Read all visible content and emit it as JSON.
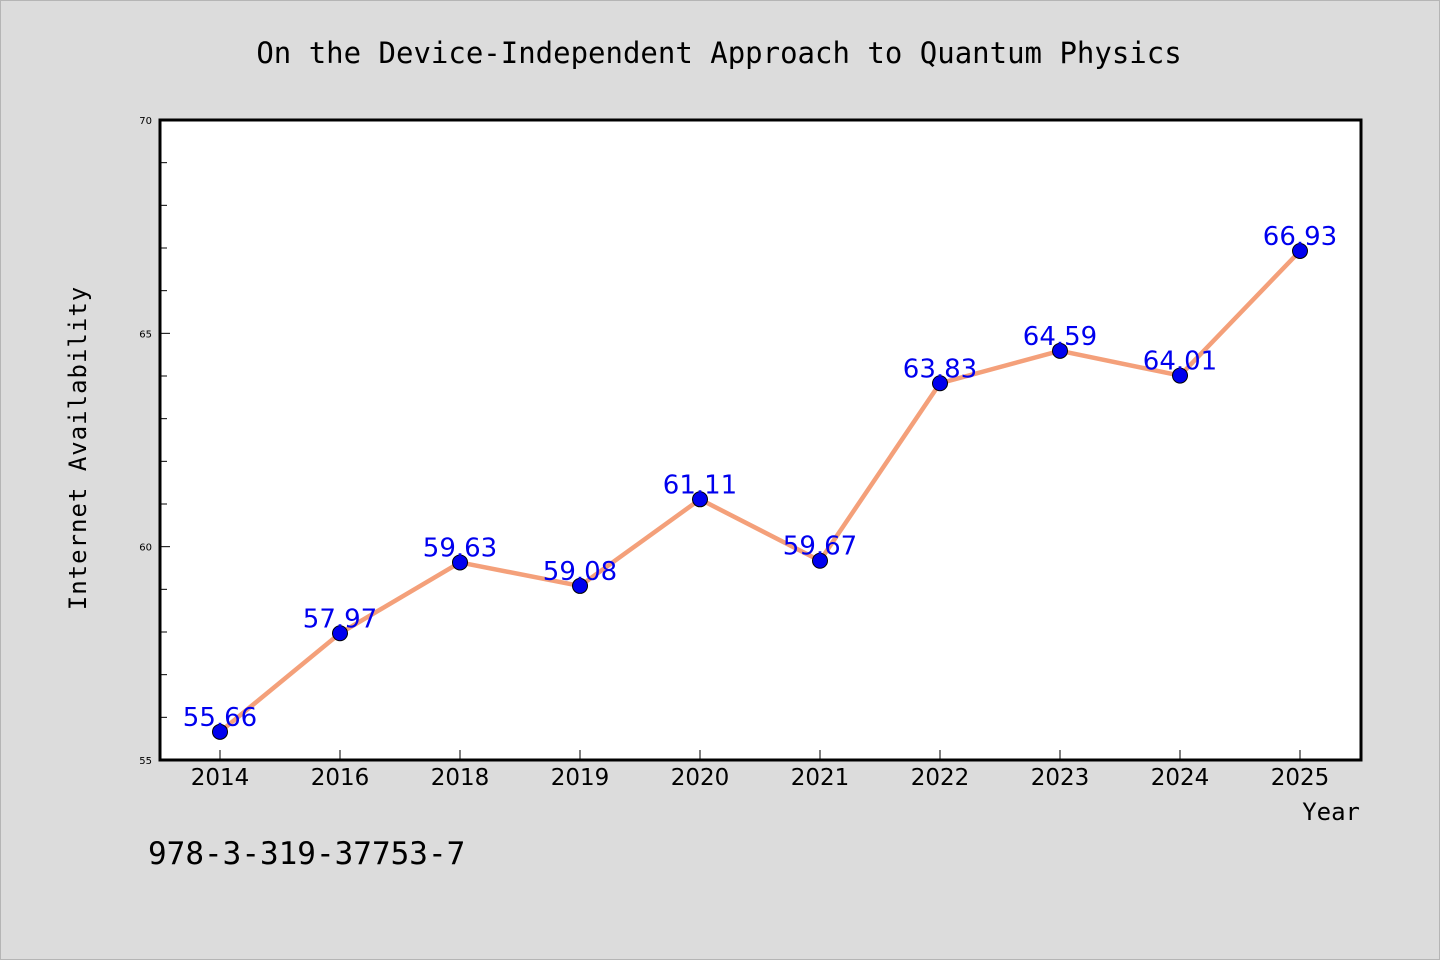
{
  "chart_data": {
    "type": "line",
    "title": "On the Device-Independent Approach to Quantum Physics",
    "xlabel": "Year",
    "ylabel": "Internet Availability",
    "categories": [
      "2014",
      "2016",
      "2018",
      "2019",
      "2020",
      "2021",
      "2022",
      "2023",
      "2024",
      "2025"
    ],
    "series": [
      {
        "values": [
          55.66,
          57.97,
          59.63,
          59.08,
          61.11,
          59.67,
          63.83,
          64.59,
          64.01,
          66.93
        ],
        "labels": [
          "55.66",
          "57.97",
          "59.63",
          "59.08",
          "61.11",
          "59.67",
          "63.83",
          "64.59",
          "64.01",
          "66.93"
        ],
        "line_color": "#f4a07a",
        "marker_color": "#0000ee",
        "label_color": "#0000ee"
      }
    ],
    "ylim": [
      55,
      70
    ],
    "y_ticks": [
      "55",
      "60",
      "65",
      "70"
    ],
    "y_major_step": 5,
    "y_minor_step": 1,
    "grid": false,
    "legend": "none",
    "background": "#dcdcdc",
    "plot_background": "#ffffff"
  },
  "footer_text": "978-3-319-37753-7"
}
